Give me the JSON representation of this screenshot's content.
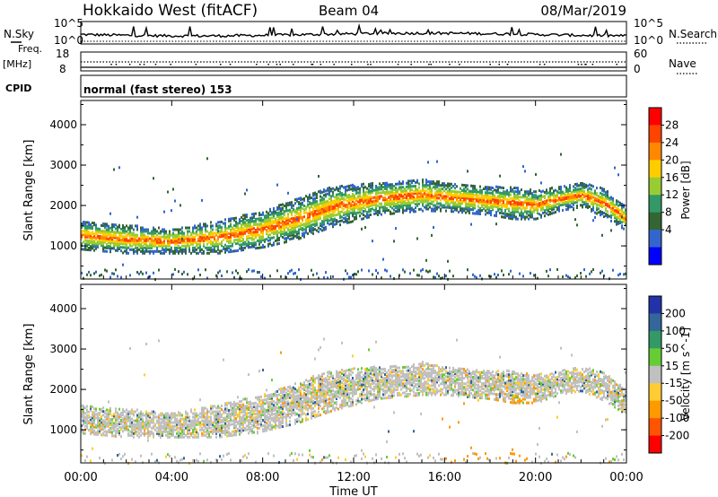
{
  "header": {
    "title": "Hokkaido West (fitACF)",
    "beam": "Beam 04",
    "date": "08/Mar/2019"
  },
  "mini_panels": {
    "nsky_label": "N.Sky",
    "nsearch_label": "N.Search",
    "count_ticks": [
      "10^5",
      "10^0"
    ],
    "freq_label": "Freq.",
    "freq_unit": "[MHz]",
    "freq_ticks": [
      "18",
      "8"
    ],
    "nave_label": "Nave",
    "nave_ticks": [
      "60",
      "0"
    ],
    "cpid_label": "CPID",
    "cpid_text": "normal (fast stereo) 153"
  },
  "chart_data": [
    {
      "type": "heatmap",
      "name": "power",
      "ylabel": "Slant Range [km]",
      "xlabel": "Time UT",
      "x_ticks": [
        "00:00",
        "04:00",
        "08:00",
        "12:00",
        "16:00",
        "20:00",
        "00:00"
      ],
      "xlim_hours": [
        0,
        24
      ],
      "y_ticks": [
        1000,
        2000,
        3000,
        4000
      ],
      "ylim": [
        180,
        4600
      ],
      "colorbar": {
        "label": "Power [dB]",
        "ticks": [
          "28",
          "24",
          "20",
          "16",
          "12",
          "8",
          "4"
        ],
        "colors": [
          "#ff0000",
          "#ff4400",
          "#ff8800",
          "#ffcc00",
          "#99cc33",
          "#339966",
          "#336633",
          "#3366cc",
          "#0000ff"
        ]
      },
      "bands": [
        {
          "t": [
            0,
            2,
            4,
            6,
            8,
            9.5,
            11,
            12,
            13,
            14,
            15,
            16,
            17,
            18,
            19,
            20,
            21,
            22,
            23,
            24
          ],
          "center": [
            1300,
            1200,
            1150,
            1250,
            1450,
            1700,
            2000,
            2100,
            2200,
            2250,
            2300,
            2250,
            2200,
            2150,
            2100,
            2050,
            2200,
            2300,
            2100,
            1700
          ],
          "width": [
            350,
            350,
            300,
            400,
            450,
            500,
            500,
            450,
            400,
            400,
            400,
            350,
            350,
            350,
            400,
            350,
            300,
            300,
            350,
            300
          ]
        }
      ]
    },
    {
      "type": "heatmap",
      "name": "velocity",
      "ylabel": "Slant Range [km]",
      "xlabel": "Time UT",
      "x_ticks": [
        "00:00",
        "04:00",
        "08:00",
        "12:00",
        "16:00",
        "20:00",
        "00:00"
      ],
      "xlim_hours": [
        0,
        24
      ],
      "y_ticks": [
        1000,
        2000,
        3000,
        4000
      ],
      "ylim": [
        180,
        4600
      ],
      "colorbar": {
        "label": "Velocity [m s^-1]",
        "ticks": [
          "200",
          "100",
          "50",
          "15",
          "-15",
          "-50",
          "-100",
          "-200"
        ],
        "colors": [
          "#2233aa",
          "#336699",
          "#339966",
          "#66cc33",
          "#c0c0c0",
          "#ffcc33",
          "#ff9900",
          "#ff5500",
          "#ff0000"
        ]
      }
    }
  ],
  "axis": {
    "xlabel": "Time UT"
  }
}
